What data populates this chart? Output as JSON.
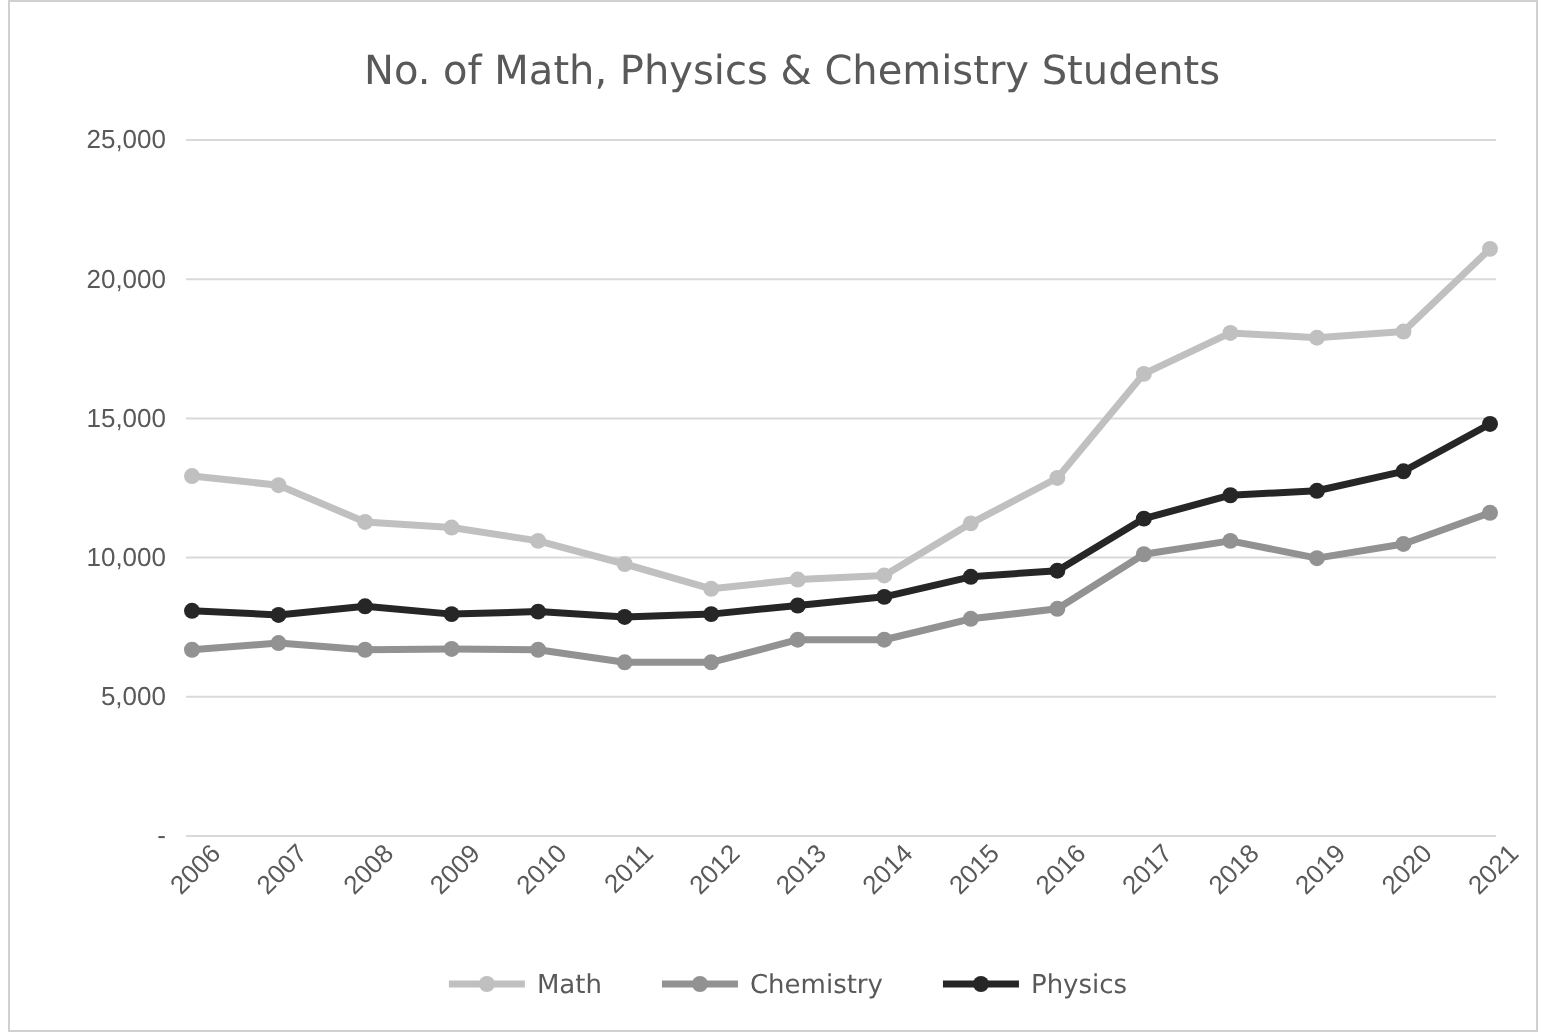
{
  "chart_data": {
    "type": "line",
    "title": "No. of Math, Physics & Chemistry Students",
    "categories": [
      "2006",
      "2007",
      "2008",
      "2009",
      "2010",
      "2011",
      "2012",
      "2013",
      "2014",
      "2015",
      "2016",
      "2017",
      "2018",
      "2019",
      "2020",
      "2021"
    ],
    "series": [
      {
        "name": "Math",
        "color": "#c0c0c0",
        "values": [
          12930,
          12600,
          11280,
          11080,
          10600,
          9770,
          8880,
          9210,
          9360,
          11230,
          12860,
          16600,
          18070,
          17900,
          18120,
          21090
        ]
      },
      {
        "name": "Chemistry",
        "color": "#929292",
        "values": [
          6690,
          6930,
          6690,
          6720,
          6690,
          6240,
          6240,
          7050,
          7050,
          7800,
          8160,
          10120,
          10600,
          9980,
          10490,
          11610
        ]
      },
      {
        "name": "Physics",
        "color": "#262626",
        "values": [
          8090,
          7940,
          8250,
          7970,
          8060,
          7870,
          7970,
          8280,
          8590,
          9310,
          9530,
          11400,
          12240,
          12400,
          13100,
          14800
        ]
      }
    ],
    "ylim": [
      0,
      25000
    ],
    "yticks": [
      {
        "value": 0,
        "label": "-"
      },
      {
        "value": 5000,
        "label": "5,000"
      },
      {
        "value": 10000,
        "label": "10,000"
      },
      {
        "value": 15000,
        "label": "15,000"
      },
      {
        "value": 20000,
        "label": "20,000"
      },
      {
        "value": 25000,
        "label": "25,000"
      }
    ],
    "grid": "y",
    "legend": "bottom",
    "marker": "circle",
    "line_style": "solid"
  }
}
